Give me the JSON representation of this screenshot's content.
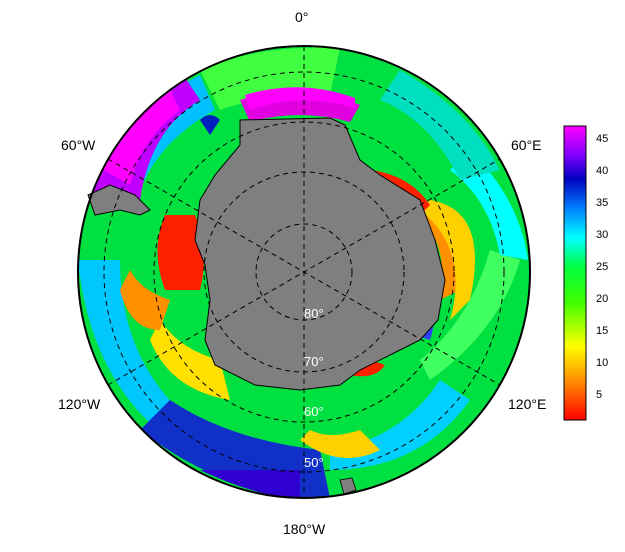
{
  "map": {
    "projection": "south-polar-stereographic",
    "land_color": "#7f7f7f",
    "ocean_colormap": "rainbow",
    "longitude_labels": {
      "top": "0°",
      "upper_left": "60°W",
      "upper_right": "60°E",
      "lower_left": "120°W",
      "lower_right": "120°E",
      "bottom": "180°W"
    },
    "latitude_labels": [
      "80°",
      "70°",
      "60°",
      "50°"
    ]
  },
  "colorbar": {
    "ticks": [
      "45",
      "40",
      "35",
      "30",
      "25",
      "20",
      "15",
      "10",
      "5"
    ],
    "colors": [
      "#ff0000",
      "#ff8000",
      "#ffff00",
      "#80ff00",
      "#00ff00",
      "#00ffff",
      "#0080ff",
      "#0000c0",
      "#8000ff",
      "#ff00ff"
    ]
  }
}
